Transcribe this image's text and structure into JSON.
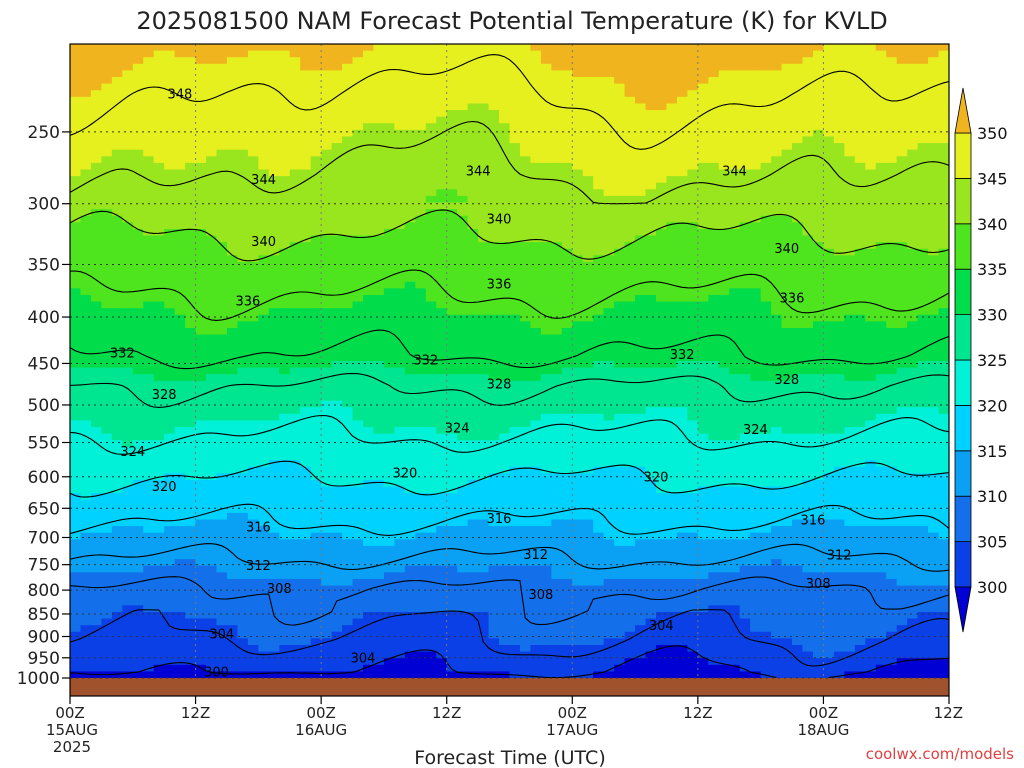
{
  "title": "2025081500 NAM Forecast Potential Temperature (K) for KVLD",
  "credit": "coolwx.com/models",
  "chart_data": {
    "type": "heatmap",
    "title": "2025081500 NAM Forecast Potential Temperature (K) for KVLD",
    "xlabel": "Forecast Time (UTC)",
    "ylabel": "",
    "x_ticks": [
      {
        "hour": 0,
        "labels": [
          "00Z",
          "15AUG",
          "2025"
        ]
      },
      {
        "hour": 12,
        "labels": [
          "12Z"
        ]
      },
      {
        "hour": 24,
        "labels": [
          "00Z",
          "16AUG"
        ]
      },
      {
        "hour": 36,
        "labels": [
          "12Z"
        ]
      },
      {
        "hour": 48,
        "labels": [
          "00Z",
          "17AUG"
        ]
      },
      {
        "hour": 60,
        "labels": [
          "12Z"
        ]
      },
      {
        "hour": 72,
        "labels": [
          "00Z",
          "18AUG"
        ]
      },
      {
        "hour": 84,
        "labels": [
          "12Z"
        ]
      }
    ],
    "xlim": [
      0,
      84
    ],
    "y_ticks": [
      250,
      300,
      350,
      400,
      450,
      500,
      550,
      600,
      650,
      700,
      750,
      800,
      850,
      900,
      950,
      1000
    ],
    "y_scale": "log pressure (hPa)",
    "ylim": [
      1000,
      200
    ],
    "grid": true,
    "colorbar": {
      "levels": [
        300,
        305,
        310,
        315,
        320,
        325,
        330,
        335,
        340,
        345,
        350
      ],
      "tick_labels": [
        "300",
        "305",
        "310",
        "315",
        "320",
        "325",
        "330",
        "335",
        "340",
        "345",
        "350"
      ],
      "colors": [
        "#0000d4",
        "#0a40e6",
        "#1470ea",
        "#0aa0f4",
        "#00d2ff",
        "#00f0d8",
        "#00e690",
        "#00dc4a",
        "#4ee41e",
        "#9ae61e",
        "#e6f01e",
        "#f0b41e"
      ],
      "extend": "both"
    },
    "contour_interval": 4,
    "contour_labels": [
      {
        "value": 348,
        "hour": 10.5,
        "p": 227
      },
      {
        "value": 344,
        "hour": 18.5,
        "p": 282
      },
      {
        "value": 344,
        "hour": 39,
        "p": 276
      },
      {
        "value": 344,
        "hour": 63.5,
        "p": 276
      },
      {
        "value": 340,
        "hour": 18.5,
        "p": 330
      },
      {
        "value": 340,
        "hour": 41,
        "p": 312
      },
      {
        "value": 340,
        "hour": 68.5,
        "p": 336
      },
      {
        "value": 336,
        "hour": 17,
        "p": 384
      },
      {
        "value": 336,
        "hour": 41,
        "p": 368
      },
      {
        "value": 336,
        "hour": 69,
        "p": 381
      },
      {
        "value": 332,
        "hour": 5,
        "p": 438
      },
      {
        "value": 332,
        "hour": 34,
        "p": 446
      },
      {
        "value": 332,
        "hour": 58.5,
        "p": 440
      },
      {
        "value": 328,
        "hour": 9,
        "p": 487
      },
      {
        "value": 328,
        "hour": 41,
        "p": 474
      },
      {
        "value": 328,
        "hour": 68.5,
        "p": 469
      },
      {
        "value": 324,
        "hour": 6,
        "p": 563
      },
      {
        "value": 324,
        "hour": 37,
        "p": 530
      },
      {
        "value": 324,
        "hour": 65.5,
        "p": 532
      },
      {
        "value": 320,
        "hour": 9,
        "p": 615
      },
      {
        "value": 320,
        "hour": 32,
        "p": 594
      },
      {
        "value": 320,
        "hour": 56,
        "p": 600
      },
      {
        "value": 316,
        "hour": 18,
        "p": 682
      },
      {
        "value": 316,
        "hour": 41,
        "p": 667
      },
      {
        "value": 316,
        "hour": 71,
        "p": 670
      },
      {
        "value": 312,
        "hour": 18,
        "p": 752
      },
      {
        "value": 312,
        "hour": 44.5,
        "p": 731
      },
      {
        "value": 312,
        "hour": 73.5,
        "p": 732
      },
      {
        "value": 308,
        "hour": 20,
        "p": 797
      },
      {
        "value": 308,
        "hour": 45,
        "p": 809
      },
      {
        "value": 308,
        "hour": 71.5,
        "p": 787
      },
      {
        "value": 304,
        "hour": 14.5,
        "p": 894
      },
      {
        "value": 304,
        "hour": 28,
        "p": 951
      },
      {
        "value": 304,
        "hour": 56.5,
        "p": 875
      },
      {
        "value": 300,
        "hour": 14,
        "p": 985
      }
    ]
  }
}
